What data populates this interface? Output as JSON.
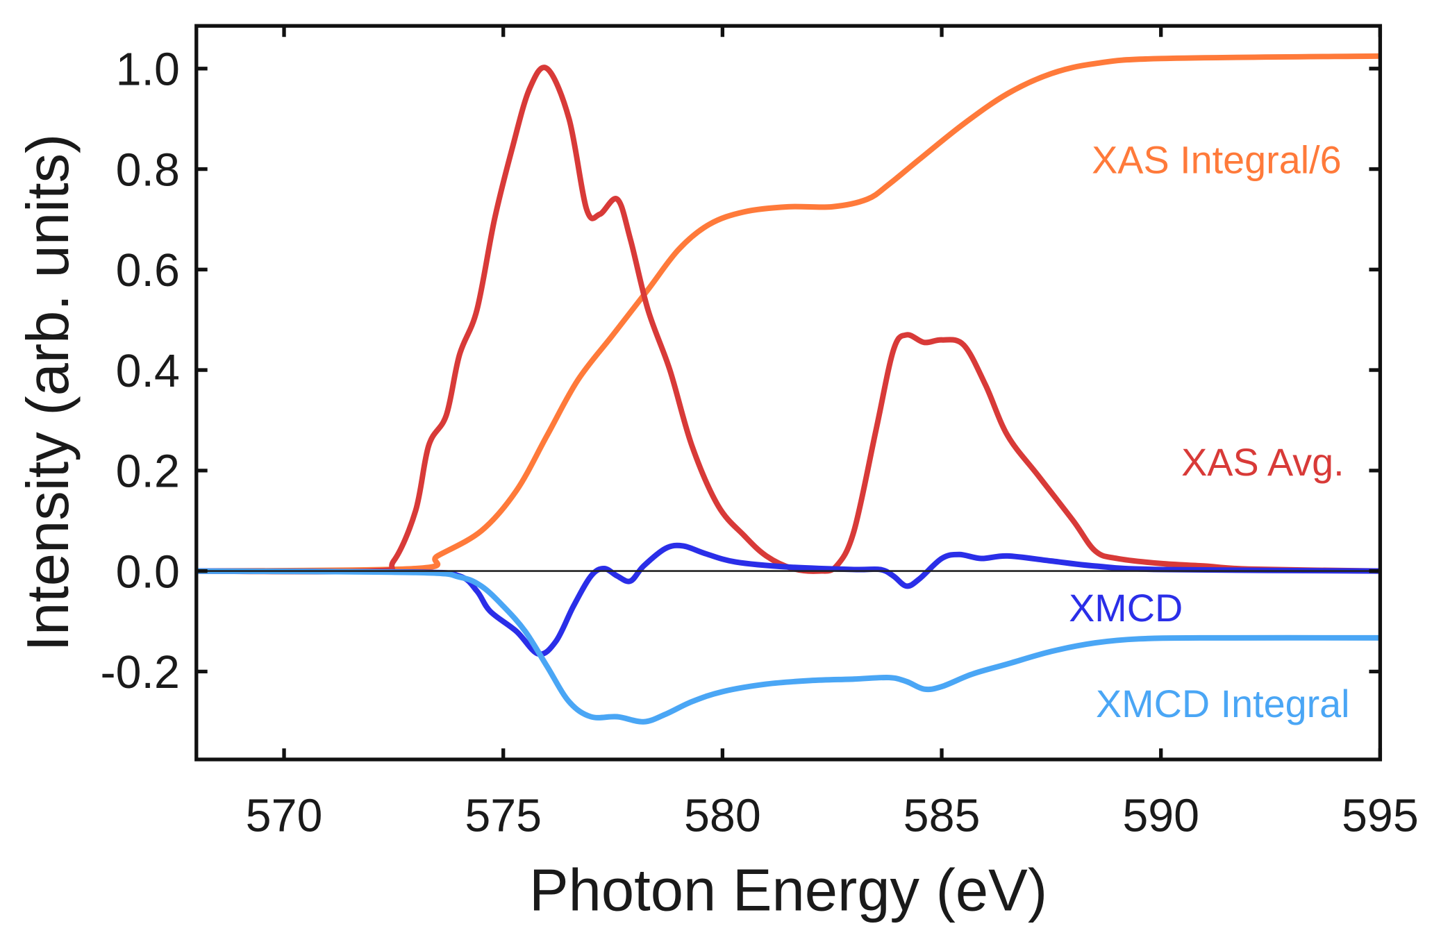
{
  "chart_data": {
    "type": "line",
    "title": "",
    "xlabel": "Photon Energy (eV)",
    "ylabel": "Intensity (arb. units)",
    "xlim": [
      568,
      595
    ],
    "ylim": [
      -0.375,
      1.085
    ],
    "xticks": [
      570,
      575,
      580,
      585,
      590,
      595
    ],
    "yticks": [
      -0.2,
      0.0,
      0.2,
      0.4,
      0.6,
      0.8,
      1.0
    ],
    "xtick_labels": [
      "570",
      "575",
      "580",
      "585",
      "590",
      "595"
    ],
    "ytick_labels": [
      "-0.2",
      "0.0",
      "0.2",
      "0.4",
      "0.6",
      "0.8",
      "1.0"
    ],
    "grid": false,
    "zero_line": true,
    "series": [
      {
        "name": "XAS Integral/6",
        "color": "#ff7a3a",
        "x": [
          568,
          573,
          573.5,
          574.5,
          575.3,
          576,
          576.7,
          577.5,
          578.3,
          579,
          579.7,
          580.5,
          581.5,
          582.5,
          583.3,
          583.8,
          584.5,
          585.5,
          586.5,
          587.5,
          588.5,
          590,
          595
        ],
        "y": [
          0,
          0.005,
          0.03,
          0.08,
          0.16,
          0.27,
          0.38,
          0.47,
          0.56,
          0.64,
          0.69,
          0.715,
          0.725,
          0.725,
          0.74,
          0.77,
          0.82,
          0.89,
          0.95,
          0.99,
          1.01,
          1.02,
          1.025
        ]
      },
      {
        "name": "XAS Avg.",
        "color": "#d83a38",
        "x": [
          568,
          572,
          572.5,
          573,
          573.3,
          573.7,
          574,
          574.4,
          574.8,
          575.2,
          575.6,
          576,
          576.5,
          576.9,
          577.2,
          577.6,
          577.9,
          578.3,
          578.8,
          579.3,
          579.9,
          580.5,
          581,
          581.6,
          582.2,
          582.6,
          583,
          583.5,
          583.9,
          584.2,
          584.6,
          585,
          585.5,
          586,
          586.5,
          587.2,
          588,
          588.5,
          589,
          590,
          591,
          592,
          595
        ],
        "y": [
          0,
          0,
          0.02,
          0.12,
          0.25,
          0.31,
          0.43,
          0.52,
          0.7,
          0.84,
          0.96,
          1.0,
          0.9,
          0.72,
          0.71,
          0.74,
          0.66,
          0.52,
          0.4,
          0.25,
          0.13,
          0.07,
          0.03,
          0.005,
          0,
          0.01,
          0.08,
          0.28,
          0.44,
          0.47,
          0.455,
          0.46,
          0.45,
          0.37,
          0.27,
          0.19,
          0.1,
          0.04,
          0.025,
          0.015,
          0.01,
          0.004,
          0
        ]
      },
      {
        "name": "XMCD",
        "color": "#2a2ee8",
        "x": [
          568,
          573,
          574,
          574.4,
          574.7,
          575.3,
          575.8,
          576.2,
          576.6,
          577,
          577.3,
          577.6,
          577.9,
          578.2,
          578.7,
          579.1,
          579.6,
          580.3,
          581.5,
          583,
          583.6,
          583.9,
          584.2,
          584.5,
          585,
          585.4,
          585.9,
          586.5,
          587.5,
          588.5,
          590,
          595
        ],
        "y": [
          0,
          -0.002,
          -0.01,
          -0.04,
          -0.08,
          -0.12,
          -0.165,
          -0.14,
          -0.07,
          -0.01,
          0.005,
          -0.01,
          -0.02,
          0.01,
          0.045,
          0.05,
          0.035,
          0.018,
          0.008,
          0.003,
          0.003,
          -0.01,
          -0.03,
          -0.015,
          0.025,
          0.033,
          0.025,
          0.03,
          0.02,
          0.01,
          0.003,
          0
        ]
      },
      {
        "name": "XMCD Integral",
        "color": "#4aa6f5",
        "x": [
          568,
          573,
          574,
          574.5,
          575,
          575.5,
          576,
          576.5,
          577,
          577.6,
          578.2,
          578.7,
          579.3,
          580,
          581,
          582,
          583,
          583.8,
          584.2,
          584.6,
          585,
          585.7,
          586.5,
          587.5,
          588.5,
          589.5,
          591,
          595
        ],
        "y": [
          0,
          -0.003,
          -0.012,
          -0.03,
          -0.07,
          -0.12,
          -0.19,
          -0.26,
          -0.29,
          -0.29,
          -0.3,
          -0.285,
          -0.26,
          -0.24,
          -0.225,
          -0.218,
          -0.215,
          -0.212,
          -0.22,
          -0.235,
          -0.23,
          -0.205,
          -0.185,
          -0.16,
          -0.143,
          -0.135,
          -0.133,
          -0.133
        ]
      }
    ],
    "annotations": [
      "XAS Integral/6",
      "XAS Avg.",
      "XMCD",
      "XMCD Integral"
    ]
  }
}
